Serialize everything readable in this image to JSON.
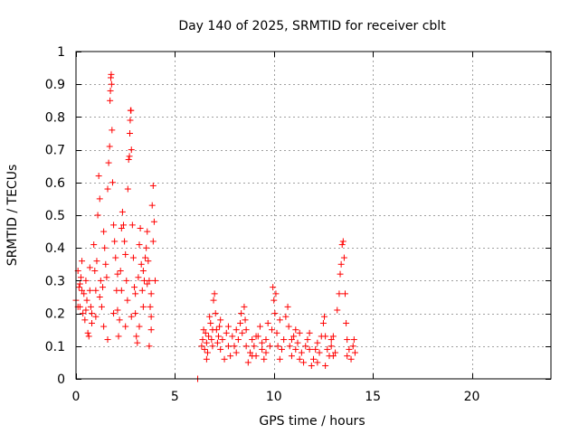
{
  "chart_data": {
    "type": "scatter",
    "title": "Day 140 of 2025, SRMTID for receiver cblt",
    "xlabel": "GPS time / hours",
    "ylabel": "SRMTID / TECUs",
    "xlim": [
      0,
      24
    ],
    "ylim": [
      0,
      1
    ],
    "xticks": [
      0,
      5,
      10,
      15,
      20
    ],
    "xtick_labels": [
      "0",
      "5",
      "10",
      "15",
      "20"
    ],
    "yticks": [
      0,
      0.1,
      0.2,
      0.3,
      0.4,
      0.5,
      0.6,
      0.7,
      0.8,
      0.9,
      1
    ],
    "ytick_labels": [
      "0",
      "0.1",
      "0.2",
      "0.3",
      "0.4",
      "0.5",
      "0.6",
      "0.7",
      "0.8",
      "0.9",
      "1"
    ],
    "grid": true,
    "marker": "+",
    "marker_color": "#ff0000",
    "series": [
      {
        "name": "SRMTID cblt",
        "points": [
          [
            0.0,
            0.24
          ],
          [
            0.1,
            0.33
          ],
          [
            0.15,
            0.28
          ],
          [
            0.2,
            0.22
          ],
          [
            0.25,
            0.31
          ],
          [
            0.3,
            0.36
          ],
          [
            0.35,
            0.2
          ],
          [
            0.4,
            0.26
          ],
          [
            0.45,
            0.18
          ],
          [
            0.5,
            0.3
          ],
          [
            0.55,
            0.24
          ],
          [
            0.6,
            0.14
          ],
          [
            0.65,
            0.13
          ],
          [
            0.7,
            0.27
          ],
          [
            0.75,
            0.22
          ],
          [
            0.8,
            0.2
          ],
          [
            0.9,
            0.41
          ],
          [
            0.95,
            0.33
          ],
          [
            1.0,
            0.27
          ],
          [
            1.05,
            0.36
          ],
          [
            1.1,
            0.5
          ],
          [
            1.15,
            0.62
          ],
          [
            1.2,
            0.55
          ],
          [
            1.25,
            0.3
          ],
          [
            1.3,
            0.22
          ],
          [
            1.35,
            0.28
          ],
          [
            1.4,
            0.45
          ],
          [
            1.45,
            0.4
          ],
          [
            1.5,
            0.35
          ],
          [
            1.55,
            0.31
          ],
          [
            1.6,
            0.58
          ],
          [
            1.65,
            0.66
          ],
          [
            1.7,
            0.71
          ],
          [
            1.72,
            0.85
          ],
          [
            1.74,
            0.88
          ],
          [
            1.76,
            0.92
          ],
          [
            1.78,
            0.93
          ],
          [
            1.8,
            0.9
          ],
          [
            1.82,
            0.76
          ],
          [
            1.85,
            0.6
          ],
          [
            1.9,
            0.47
          ],
          [
            1.95,
            0.42
          ],
          [
            2.0,
            0.37
          ],
          [
            2.05,
            0.27
          ],
          [
            2.1,
            0.21
          ],
          [
            2.15,
            0.13
          ],
          [
            2.2,
            0.18
          ],
          [
            2.25,
            0.33
          ],
          [
            2.3,
            0.46
          ],
          [
            2.35,
            0.51
          ],
          [
            2.4,
            0.47
          ],
          [
            2.45,
            0.42
          ],
          [
            2.5,
            0.38
          ],
          [
            2.55,
            0.3
          ],
          [
            2.6,
            0.24
          ],
          [
            2.62,
            0.58
          ],
          [
            2.66,
            0.67
          ],
          [
            2.7,
            0.68
          ],
          [
            2.72,
            0.75
          ],
          [
            2.74,
            0.79
          ],
          [
            2.76,
            0.82
          ],
          [
            2.78,
            0.82
          ],
          [
            2.8,
            0.7
          ],
          [
            2.85,
            0.47
          ],
          [
            2.9,
            0.37
          ],
          [
            2.95,
            0.28
          ],
          [
            3.0,
            0.2
          ],
          [
            3.05,
            0.13
          ],
          [
            3.1,
            0.11
          ],
          [
            3.15,
            0.31
          ],
          [
            3.2,
            0.41
          ],
          [
            3.25,
            0.46
          ],
          [
            3.3,
            0.35
          ],
          [
            3.35,
            0.27
          ],
          [
            3.4,
            0.33
          ],
          [
            3.45,
            0.3
          ],
          [
            3.5,
            0.37
          ],
          [
            3.55,
            0.4
          ],
          [
            3.6,
            0.45
          ],
          [
            3.65,
            0.36
          ],
          [
            3.7,
            0.3
          ],
          [
            3.75,
            0.22
          ],
          [
            3.8,
            0.19
          ],
          [
            3.85,
            0.53
          ],
          [
            3.9,
            0.59
          ],
          [
            3.95,
            0.48
          ],
          [
            4.0,
            0.3
          ],
          [
            3.9,
            0.42
          ],
          [
            3.8,
            0.15
          ],
          [
            3.7,
            0.1
          ],
          [
            0.3,
            0.27
          ],
          [
            0.5,
            0.21
          ],
          [
            0.7,
            0.34
          ],
          [
            0.8,
            0.17
          ],
          [
            1.0,
            0.19
          ],
          [
            1.2,
            0.25
          ],
          [
            1.4,
            0.16
          ],
          [
            1.6,
            0.12
          ],
          [
            1.9,
            0.2
          ],
          [
            2.1,
            0.32
          ],
          [
            2.3,
            0.27
          ],
          [
            2.5,
            0.16
          ],
          [
            2.8,
            0.19
          ],
          [
            3.0,
            0.26
          ],
          [
            3.2,
            0.16
          ],
          [
            3.4,
            0.22
          ],
          [
            3.6,
            0.29
          ],
          [
            3.8,
            0.26
          ],
          [
            0.1,
            0.22
          ],
          [
            0.2,
            0.29
          ],
          [
            6.15,
            0.0
          ],
          [
            6.35,
            0.1
          ],
          [
            6.4,
            0.12
          ],
          [
            6.45,
            0.15
          ],
          [
            6.5,
            0.09
          ],
          [
            6.55,
            0.14
          ],
          [
            6.6,
            0.11
          ],
          [
            6.65,
            0.08
          ],
          [
            6.7,
            0.13
          ],
          [
            6.75,
            0.19
          ],
          [
            6.8,
            0.17
          ],
          [
            6.85,
            0.12
          ],
          [
            6.9,
            0.1
          ],
          [
            6.95,
            0.24
          ],
          [
            7.0,
            0.26
          ],
          [
            7.05,
            0.2
          ],
          [
            7.1,
            0.15
          ],
          [
            7.15,
            0.11
          ],
          [
            7.2,
            0.13
          ],
          [
            7.25,
            0.16
          ],
          [
            7.3,
            0.09
          ],
          [
            7.4,
            0.12
          ],
          [
            7.5,
            0.06
          ],
          [
            7.6,
            0.14
          ],
          [
            7.7,
            0.1
          ],
          [
            7.8,
            0.07
          ],
          [
            7.9,
            0.13
          ],
          [
            8.0,
            0.1
          ],
          [
            8.1,
            0.15
          ],
          [
            8.2,
            0.12
          ],
          [
            8.3,
            0.17
          ],
          [
            8.35,
            0.2
          ],
          [
            8.4,
            0.14
          ],
          [
            8.5,
            0.22
          ],
          [
            8.55,
            0.18
          ],
          [
            8.6,
            0.1
          ],
          [
            8.7,
            0.05
          ],
          [
            8.8,
            0.08
          ],
          [
            8.9,
            0.12
          ],
          [
            9.0,
            0.1
          ],
          [
            9.1,
            0.07
          ],
          [
            9.2,
            0.13
          ],
          [
            9.3,
            0.16
          ],
          [
            9.4,
            0.11
          ],
          [
            9.5,
            0.06
          ],
          [
            9.6,
            0.12
          ],
          [
            9.7,
            0.17
          ],
          [
            9.8,
            0.1
          ],
          [
            9.9,
            0.15
          ],
          [
            9.95,
            0.28
          ],
          [
            10.0,
            0.24
          ],
          [
            10.05,
            0.2
          ],
          [
            10.1,
            0.26
          ],
          [
            10.15,
            0.14
          ],
          [
            10.2,
            0.1
          ],
          [
            10.3,
            0.06
          ],
          [
            10.4,
            0.09
          ],
          [
            10.5,
            0.12
          ],
          [
            10.6,
            0.19
          ],
          [
            10.7,
            0.22
          ],
          [
            10.75,
            0.16
          ],
          [
            10.8,
            0.1
          ],
          [
            10.9,
            0.07
          ],
          [
            11.0,
            0.13
          ],
          [
            11.1,
            0.09
          ],
          [
            11.2,
            0.11
          ],
          [
            11.3,
            0.14
          ],
          [
            11.4,
            0.08
          ],
          [
            11.5,
            0.05
          ],
          [
            11.6,
            0.1
          ],
          [
            11.7,
            0.12
          ],
          [
            11.8,
            0.09
          ],
          [
            11.9,
            0.04
          ],
          [
            12.0,
            0.06
          ],
          [
            12.1,
            0.09
          ],
          [
            12.2,
            0.05
          ],
          [
            12.3,
            0.08
          ],
          [
            12.4,
            0.13
          ],
          [
            12.5,
            0.17
          ],
          [
            12.55,
            0.19
          ],
          [
            12.6,
            0.13
          ],
          [
            12.7,
            0.09
          ],
          [
            12.8,
            0.07
          ],
          [
            12.9,
            0.1
          ],
          [
            13.0,
            0.13
          ],
          [
            13.1,
            0.08
          ],
          [
            13.2,
            0.21
          ],
          [
            13.3,
            0.26
          ],
          [
            13.35,
            0.32
          ],
          [
            13.4,
            0.35
          ],
          [
            13.45,
            0.41
          ],
          [
            13.5,
            0.42
          ],
          [
            13.55,
            0.37
          ],
          [
            13.6,
            0.26
          ],
          [
            13.65,
            0.17
          ],
          [
            13.7,
            0.12
          ],
          [
            13.8,
            0.09
          ],
          [
            13.9,
            0.06
          ],
          [
            14.0,
            0.1
          ],
          [
            14.05,
            0.12
          ],
          [
            14.1,
            0.08
          ],
          [
            6.6,
            0.06
          ],
          [
            6.9,
            0.15
          ],
          [
            7.3,
            0.18
          ],
          [
            7.7,
            0.16
          ],
          [
            8.1,
            0.08
          ],
          [
            8.6,
            0.15
          ],
          [
            9.1,
            0.13
          ],
          [
            9.6,
            0.08
          ],
          [
            10.3,
            0.18
          ],
          [
            10.9,
            0.12
          ],
          [
            11.3,
            0.06
          ],
          [
            11.8,
            0.14
          ],
          [
            12.2,
            0.11
          ],
          [
            12.6,
            0.04
          ],
          [
            13.0,
            0.07
          ],
          [
            13.7,
            0.07
          ],
          [
            8.9,
            0.07
          ],
          [
            9.4,
            0.09
          ],
          [
            11.1,
            0.15
          ],
          [
            12.9,
            0.12
          ]
        ]
      }
    ]
  }
}
